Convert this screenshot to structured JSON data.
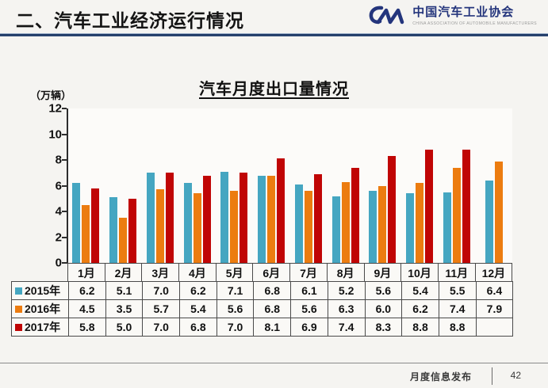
{
  "header": {
    "title": "二、汽车工业经济运行情况",
    "logo": {
      "org_cn": "中国汽车工业协会",
      "org_en": "CHINA ASSOCIATION OF AUTOMOBILE MANUFACTURERS",
      "monogram": "CM",
      "color": "#24357c"
    }
  },
  "chart": {
    "title": "汽车月度出口量情况",
    "unit_label": "（万辆）",
    "y_ticks": [
      12,
      10,
      8,
      6,
      4,
      2,
      0
    ]
  },
  "chart_data": {
    "type": "bar",
    "title": "汽车月度出口量情况",
    "ylabel": "（万辆）",
    "ylim": [
      0,
      12
    ],
    "grid": false,
    "legend_position": "table-left",
    "categories": [
      "1月",
      "2月",
      "3月",
      "4月",
      "5月",
      "6月",
      "7月",
      "8月",
      "9月",
      "10月",
      "11月",
      "12月"
    ],
    "series": [
      {
        "name": "2015年",
        "color": "#45a6c1",
        "values": [
          6.2,
          5.1,
          7.0,
          6.2,
          7.1,
          6.8,
          6.1,
          5.2,
          5.6,
          5.4,
          5.5,
          6.4
        ]
      },
      {
        "name": "2016年",
        "color": "#ec7c10",
        "values": [
          4.5,
          3.5,
          5.7,
          5.4,
          5.6,
          6.8,
          5.6,
          6.3,
          6.0,
          6.2,
          7.4,
          7.9
        ]
      },
      {
        "name": "2017年",
        "color": "#c00505",
        "values": [
          5.8,
          5.0,
          7.0,
          6.8,
          7.0,
          8.1,
          6.9,
          7.4,
          8.3,
          8.8,
          8.8,
          null
        ]
      }
    ]
  },
  "footer": {
    "label": "月度信息发布",
    "page": "42"
  }
}
